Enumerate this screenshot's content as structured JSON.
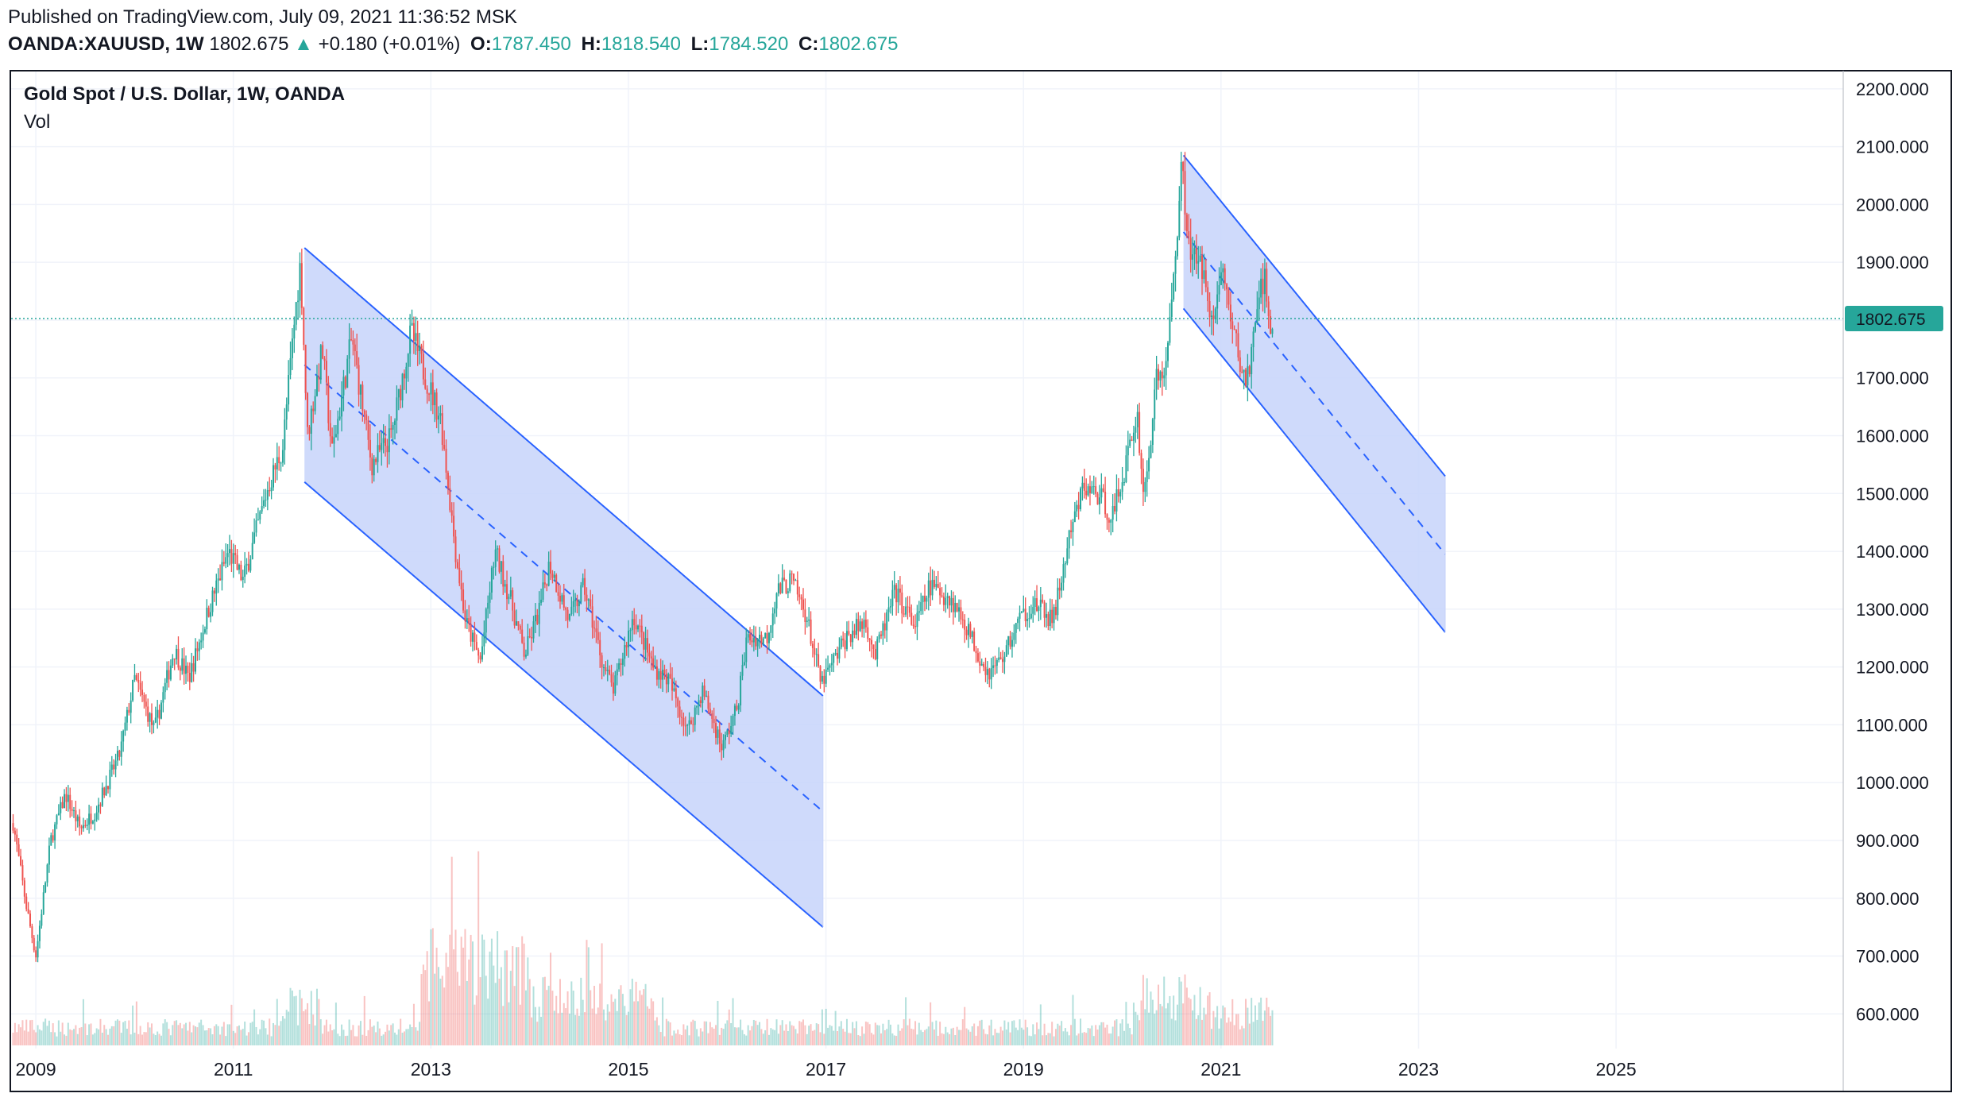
{
  "header": {
    "published": "Published on TradingView.com, July 09, 2021 11:36:52 MSK",
    "symbol": "OANDA:XAUUSD, 1W",
    "last": "1802.675",
    "change": "+0.180 (+0.01%)",
    "open_label": "O:",
    "open": "1787.450",
    "high_label": "H:",
    "high": "1818.540",
    "low_label": "L:",
    "low": "1784.520",
    "close_label": "C:",
    "close": "1802.675"
  },
  "legend": {
    "title": "Gold Spot / U.S. Dollar, 1W, OANDA",
    "volume": "Vol"
  },
  "price_tag": "1802.675",
  "colors": {
    "up": "#26a69a",
    "down": "#ef5350",
    "channel": "#2962ff",
    "channel_fill": "#c7d3fa",
    "tag": "#26a69a"
  },
  "chart_data": {
    "type": "candlestick",
    "title": "Gold Spot / U.S. Dollar, 1W, OANDA",
    "xlabel": "",
    "ylabel": "",
    "x_ticks": [
      "2009",
      "2011",
      "2013",
      "2015",
      "2017",
      "2019",
      "2021",
      "2023",
      "2025"
    ],
    "y_ticks": [
      "600.000",
      "700.000",
      "800.000",
      "900.000",
      "1000.000",
      "1100.000",
      "1200.000",
      "1300.000",
      "1400.000",
      "1500.000",
      "1600.000",
      "1700.000",
      "1800.000",
      "1900.000",
      "2000.000",
      "2100.000",
      "2200.000"
    ],
    "x_range": [
      2008.75,
      2027.3
    ],
    "y_range": [
      540,
      2230
    ],
    "last_price": 1802.675,
    "grid": true,
    "price_path": [
      [
        2008.77,
        930
      ],
      [
        2008.9,
        790
      ],
      [
        2009.0,
        700
      ],
      [
        2009.15,
        900
      ],
      [
        2009.3,
        980
      ],
      [
        2009.45,
        920
      ],
      [
        2009.6,
        950
      ],
      [
        2009.85,
        1050
      ],
      [
        2010.0,
        1180
      ],
      [
        2010.2,
        1090
      ],
      [
        2010.4,
        1230
      ],
      [
        2010.55,
        1180
      ],
      [
        2010.75,
        1300
      ],
      [
        2010.95,
        1400
      ],
      [
        2011.1,
        1350
      ],
      [
        2011.35,
        1510
      ],
      [
        2011.5,
        1580
      ],
      [
        2011.62,
        1800
      ],
      [
        2011.68,
        1900
      ],
      [
        2011.75,
        1600
      ],
      [
        2011.9,
        1750
      ],
      [
        2012.0,
        1570
      ],
      [
        2012.2,
        1770
      ],
      [
        2012.4,
        1550
      ],
      [
        2012.6,
        1600
      ],
      [
        2012.8,
        1780
      ],
      [
        2012.95,
        1700
      ],
      [
        2013.1,
        1630
      ],
      [
        2013.25,
        1400
      ],
      [
        2013.35,
        1280
      ],
      [
        2013.5,
        1210
      ],
      [
        2013.65,
        1400
      ],
      [
        2013.8,
        1320
      ],
      [
        2013.95,
        1220
      ],
      [
        2014.1,
        1300
      ],
      [
        2014.2,
        1380
      ],
      [
        2014.4,
        1280
      ],
      [
        2014.55,
        1340
      ],
      [
        2014.75,
        1200
      ],
      [
        2014.85,
        1160
      ],
      [
        2015.05,
        1290
      ],
      [
        2015.25,
        1200
      ],
      [
        2015.4,
        1180
      ],
      [
        2015.6,
        1090
      ],
      [
        2015.75,
        1160
      ],
      [
        2015.95,
        1060
      ],
      [
        2016.1,
        1130
      ],
      [
        2016.2,
        1250
      ],
      [
        2016.4,
        1250
      ],
      [
        2016.5,
        1330
      ],
      [
        2016.65,
        1350
      ],
      [
        2016.8,
        1290
      ],
      [
        2016.95,
        1170
      ],
      [
        2017.05,
        1200
      ],
      [
        2017.2,
        1250
      ],
      [
        2017.4,
        1280
      ],
      [
        2017.5,
        1220
      ],
      [
        2017.7,
        1330
      ],
      [
        2017.9,
        1270
      ],
      [
        2018.05,
        1340
      ],
      [
        2018.25,
        1320
      ],
      [
        2018.4,
        1280
      ],
      [
        2018.55,
        1220
      ],
      [
        2018.65,
        1190
      ],
      [
        2018.8,
        1220
      ],
      [
        2018.95,
        1280
      ],
      [
        2019.1,
        1310
      ],
      [
        2019.3,
        1280
      ],
      [
        2019.45,
        1410
      ],
      [
        2019.6,
        1510
      ],
      [
        2019.75,
        1500
      ],
      [
        2019.9,
        1460
      ],
      [
        2020.05,
        1560
      ],
      [
        2020.15,
        1640
      ],
      [
        2020.22,
        1490
      ],
      [
        2020.35,
        1700
      ],
      [
        2020.45,
        1720
      ],
      [
        2020.55,
        1950
      ],
      [
        2020.6,
        2060
      ],
      [
        2020.7,
        1910
      ],
      [
        2020.85,
        1880
      ],
      [
        2020.92,
        1780
      ],
      [
        2021.0,
        1900
      ],
      [
        2021.1,
        1800
      ],
      [
        2021.2,
        1720
      ],
      [
        2021.25,
        1690
      ],
      [
        2021.35,
        1780
      ],
      [
        2021.4,
        1880
      ],
      [
        2021.45,
        1860
      ],
      [
        2021.5,
        1770
      ],
      [
        2021.52,
        1802.675
      ]
    ],
    "channels": [
      {
        "upper": [
          [
            2011.72,
            1925
          ],
          [
            2016.97,
            1150
          ]
        ],
        "lower": [
          [
            2011.72,
            1520
          ],
          [
            2016.97,
            750
          ]
        ],
        "mid": [
          [
            2011.72,
            1722.5
          ],
          [
            2016.97,
            950
          ]
        ]
      },
      {
        "upper": [
          [
            2020.62,
            2085
          ],
          [
            2023.27,
            1530
          ]
        ],
        "lower": [
          [
            2020.62,
            1820
          ],
          [
            2023.27,
            1260
          ]
        ],
        "mid": [
          [
            2020.62,
            1952.5
          ],
          [
            2023.27,
            1395
          ]
        ]
      }
    ]
  }
}
